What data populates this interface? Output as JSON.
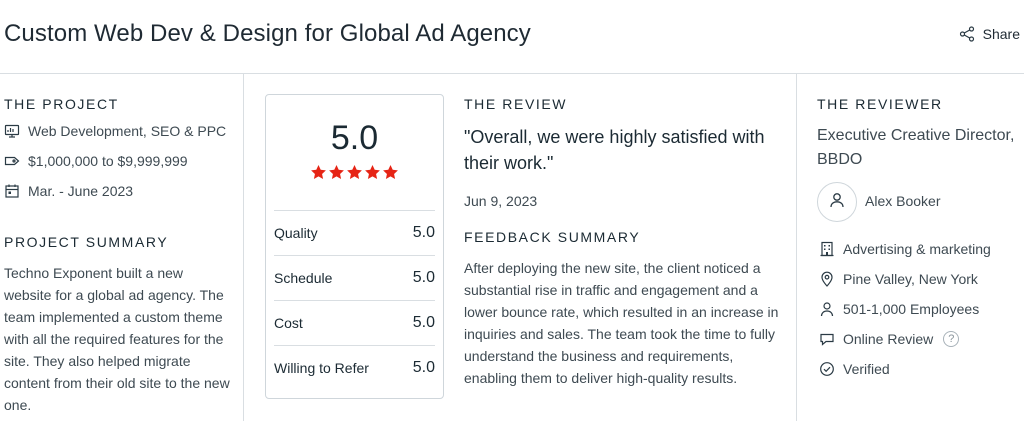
{
  "header": {
    "title": "Custom Web Dev & Design for Global Ad Agency",
    "share_label": "Share"
  },
  "project": {
    "section_title": "THE PROJECT",
    "items": [
      {
        "icon": "monitor-icon",
        "text": "Web Development, SEO & PPC"
      },
      {
        "icon": "price-tag-icon",
        "text": "$1,000,000 to $9,999,999"
      },
      {
        "icon": "calendar-icon",
        "text": "Mar. - June 2023"
      }
    ],
    "summary_title": "PROJECT SUMMARY",
    "summary": "Techno Exponent built a new website for a global ad agency. The team implemented a custom theme with all the required features for the site. They also helped migrate content from their old site to the new one."
  },
  "scores": {
    "overall": "5.0",
    "stars": 5,
    "star_color": "#e62415",
    "ratings": [
      {
        "label": "Quality",
        "value": "5.0"
      },
      {
        "label": "Schedule",
        "value": "5.0"
      },
      {
        "label": "Cost",
        "value": "5.0"
      },
      {
        "label": "Willing to Refer",
        "value": "5.0"
      }
    ]
  },
  "review": {
    "section_title": "THE REVIEW",
    "quote": "\"Overall, we were highly satisfied with their work.\"",
    "date": "Jun 9, 2023",
    "feedback_title": "FEEDBACK SUMMARY",
    "feedback": "After deploying the new site, the client noticed a substantial rise in traffic and engagement and a lower bounce rate, which resulted in an increase in inquiries and sales. The team took the time to fully understand the business and requirements, enabling them to deliver high-quality results."
  },
  "reviewer": {
    "section_title": "THE REVIEWER",
    "title": "Executive Creative Director, BBDO",
    "name": "Alex Booker",
    "details": [
      {
        "icon": "building-icon",
        "text": "Advertising & marketing"
      },
      {
        "icon": "location-pin-icon",
        "text": "Pine Valley, New York"
      },
      {
        "icon": "user-icon",
        "text": "501-1,000 Employees"
      },
      {
        "icon": "chat-bubble-icon",
        "text": "Online Review"
      },
      {
        "icon": "check-circle-icon",
        "text": "Verified"
      }
    ],
    "help_glyph": "?"
  }
}
